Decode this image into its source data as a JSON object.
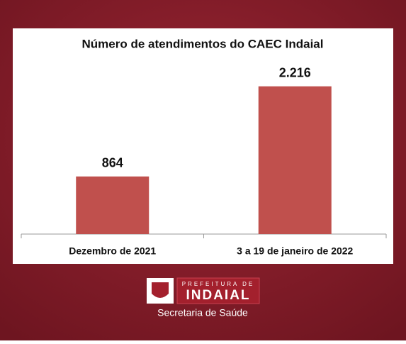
{
  "chart_data": {
    "type": "bar",
    "title": "Número de atendimentos do CAEC Indaial",
    "categories": [
      "Dezembro de 2021",
      "3 a 19 de janeiro de 2022"
    ],
    "values": [
      864,
      2216
    ],
    "value_labels": [
      "864",
      "2.216"
    ],
    "color": "#c0504d",
    "ylim": [
      0,
      2500
    ]
  },
  "branding": {
    "prefeitura": "PREFEITURA DE",
    "city": "INDAIAL",
    "department": "Secretaria de Saúde"
  }
}
